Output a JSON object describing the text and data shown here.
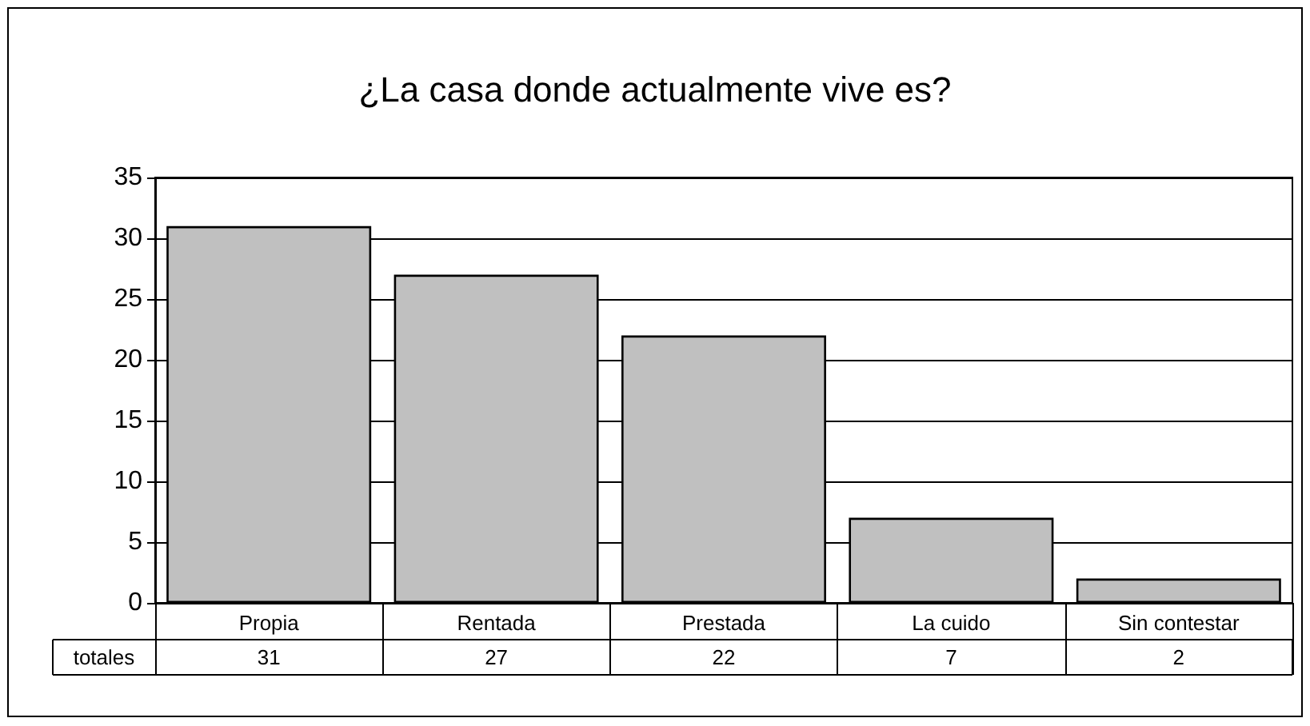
{
  "chart_data": {
    "type": "bar",
    "title": "¿La casa donde actualmente vive es?",
    "categories": [
      "Propia",
      "Rentada",
      "Prestada",
      "La cuido",
      "Sin contestar"
    ],
    "series": [
      {
        "name": "totales",
        "color": "#c0c0c0",
        "values": [
          31,
          27,
          22,
          7,
          2
        ]
      }
    ],
    "ylim": [
      0,
      35
    ],
    "yticks": [
      0,
      5,
      10,
      15,
      20,
      25,
      30,
      35
    ],
    "grid": "y",
    "data_labels": true
  }
}
